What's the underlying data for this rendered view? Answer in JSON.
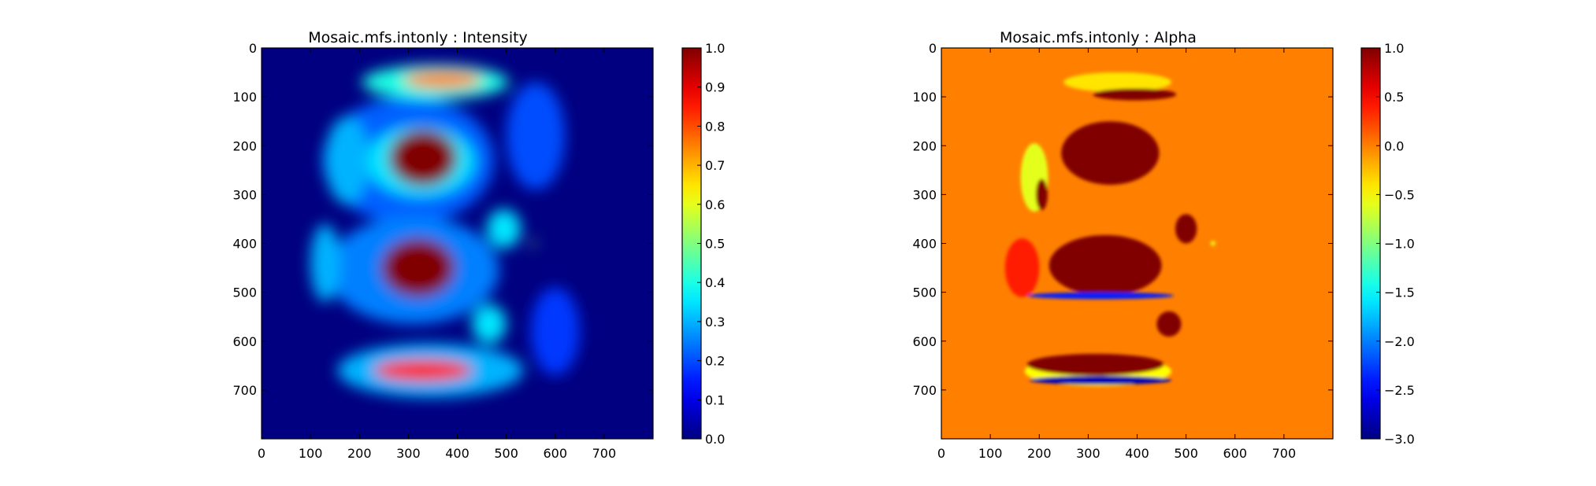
{
  "chart_data": [
    {
      "type": "heatmap",
      "title": "Mosaic.mfs.intonly : Intensity",
      "colormap": "jet",
      "image_extent": [
        0,
        800
      ],
      "x_ticks": [
        0,
        100,
        200,
        300,
        400,
        500,
        600,
        700
      ],
      "y_ticks": [
        0,
        100,
        200,
        300,
        400,
        500,
        600,
        700
      ],
      "y_axis_inverted": true,
      "colorbar": {
        "range": [
          0.0,
          1.0
        ],
        "ticks": [
          1.0,
          0.9,
          0.8,
          0.7,
          0.6,
          0.5,
          0.4,
          0.3,
          0.2,
          0.1,
          0.0
        ],
        "tick_labels": [
          "1.0",
          "0.9",
          "0.8",
          "0.7",
          "0.6",
          "0.5",
          "0.4",
          "0.3",
          "0.2",
          "0.1",
          "0.0"
        ]
      },
      "background_value": 0.0,
      "features": [
        {
          "shape": "ellipse",
          "cx": 300,
          "cy": 230,
          "rx": 175,
          "ry": 130,
          "value": 0.22
        },
        {
          "shape": "ellipse",
          "cx": 325,
          "cy": 232,
          "rx": 110,
          "ry": 72,
          "value": 0.35
        },
        {
          "shape": "ellipse",
          "cx": 330,
          "cy": 225,
          "rx": 70,
          "ry": 58,
          "value": 1.0
        },
        {
          "shape": "ellipse",
          "cx": 175,
          "cy": 230,
          "rx": 45,
          "ry": 90,
          "value": 0.3
        },
        {
          "shape": "ellipse",
          "cx": 355,
          "cy": 70,
          "rx": 150,
          "ry": 35,
          "value": 0.4
        },
        {
          "shape": "ellipse",
          "cx": 370,
          "cy": 65,
          "rx": 80,
          "ry": 18,
          "value": 0.75
        },
        {
          "shape": "ellipse",
          "cx": 310,
          "cy": 455,
          "rx": 175,
          "ry": 110,
          "value": 0.25
        },
        {
          "shape": "ellipse",
          "cx": 320,
          "cy": 450,
          "rx": 75,
          "ry": 60,
          "value": 1.0
        },
        {
          "shape": "ellipse",
          "cx": 130,
          "cy": 440,
          "rx": 30,
          "ry": 80,
          "value": 0.3
        },
        {
          "shape": "ellipse",
          "cx": 345,
          "cy": 660,
          "rx": 190,
          "ry": 55,
          "value": 0.3
        },
        {
          "shape": "ellipse",
          "cx": 330,
          "cy": 660,
          "rx": 100,
          "ry": 22,
          "value": 0.85
        },
        {
          "shape": "ellipse",
          "cx": 495,
          "cy": 370,
          "rx": 35,
          "ry": 40,
          "value": 0.35
        },
        {
          "shape": "ellipse",
          "cx": 465,
          "cy": 565,
          "rx": 35,
          "ry": 40,
          "value": 0.35
        },
        {
          "shape": "ellipse",
          "cx": 555,
          "cy": 400,
          "rx": 6,
          "ry": 6,
          "value": 0.5
        },
        {
          "shape": "ellipse",
          "cx": 560,
          "cy": 180,
          "rx": 60,
          "ry": 110,
          "value": 0.2
        },
        {
          "shape": "ellipse",
          "cx": 600,
          "cy": 580,
          "rx": 50,
          "ry": 90,
          "value": 0.18
        }
      ]
    },
    {
      "type": "heatmap",
      "title": "Mosaic.mfs.intonly : Alpha",
      "colormap": "jet",
      "image_extent": [
        0,
        800
      ],
      "x_ticks": [
        0,
        100,
        200,
        300,
        400,
        500,
        600,
        700
      ],
      "y_ticks": [
        0,
        100,
        200,
        300,
        400,
        500,
        600,
        700
      ],
      "y_axis_inverted": true,
      "colorbar": {
        "range": [
          -3.0,
          1.0
        ],
        "ticks": [
          1.0,
          0.5,
          0.0,
          -0.5,
          -1.0,
          -1.5,
          -2.0,
          -2.5,
          -3.0
        ],
        "tick_labels": [
          "1.0",
          "0.5",
          "0.0",
          "−0.5",
          "−1.0",
          "−1.5",
          "−2.0",
          "−2.5",
          "−3.0"
        ]
      },
      "background_value": 0.0,
      "features": [
        {
          "shape": "ellipse",
          "cx": 360,
          "cy": 70,
          "rx": 110,
          "ry": 20,
          "value": -0.4
        },
        {
          "shape": "ellipse",
          "cx": 395,
          "cy": 95,
          "rx": 85,
          "ry": 12,
          "value": 1.0
        },
        {
          "shape": "ellipse",
          "cx": 345,
          "cy": 215,
          "rx": 100,
          "ry": 65,
          "value": 1.0
        },
        {
          "shape": "ellipse",
          "cx": 190,
          "cy": 265,
          "rx": 28,
          "ry": 70,
          "value": -0.6
        },
        {
          "shape": "ellipse",
          "cx": 205,
          "cy": 300,
          "rx": 12,
          "ry": 32,
          "value": 1.0
        },
        {
          "shape": "ellipse",
          "cx": 500,
          "cy": 370,
          "rx": 22,
          "ry": 30,
          "value": 1.0
        },
        {
          "shape": "ellipse",
          "cx": 335,
          "cy": 445,
          "rx": 115,
          "ry": 62,
          "value": 1.0
        },
        {
          "shape": "ellipse",
          "cx": 165,
          "cy": 450,
          "rx": 35,
          "ry": 60,
          "value": 0.4
        },
        {
          "shape": "ellipse",
          "cx": 325,
          "cy": 507,
          "rx": 150,
          "ry": 7,
          "value": -2.4
        },
        {
          "shape": "ellipse",
          "cx": 465,
          "cy": 565,
          "rx": 25,
          "ry": 26,
          "value": 1.0
        },
        {
          "shape": "ellipse",
          "cx": 555,
          "cy": 400,
          "rx": 5,
          "ry": 5,
          "value": -0.6
        },
        {
          "shape": "ellipse",
          "cx": 320,
          "cy": 662,
          "rx": 150,
          "ry": 30,
          "value": -0.5
        },
        {
          "shape": "ellipse",
          "cx": 325,
          "cy": 680,
          "rx": 145,
          "ry": 9,
          "value": -2.8
        },
        {
          "shape": "ellipse",
          "cx": 315,
          "cy": 648,
          "rx": 140,
          "ry": 22,
          "value": 1.0
        }
      ]
    }
  ]
}
